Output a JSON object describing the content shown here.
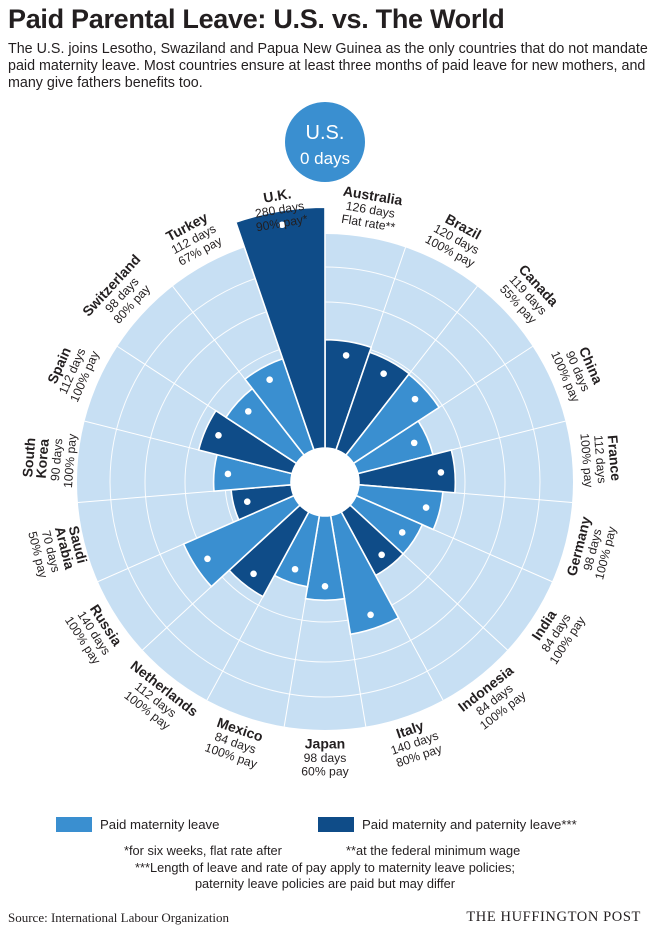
{
  "header": {
    "title": "Paid Parental Leave: U.S. vs. The World",
    "subtitle": "The U.S. joins Lesotho, Swaziland and Papua New Guinea as the only countries that do not mandate paid maternity leave. Most countries ensure at least three months of paid leave for new mothers, and many give fathers benefits too."
  },
  "chart_data": {
    "type": "polar-bar",
    "center_badge": {
      "country": "U.S.",
      "days_label": "0 days"
    },
    "series": [
      {
        "name": "Paid maternity leave",
        "color": "#3a8fd0"
      },
      {
        "name": "Paid maternity and paternity leave***",
        "color": "#0f4c88"
      }
    ],
    "countries": [
      {
        "name": "Australia",
        "days": 126,
        "days_label": "126 days",
        "pay_label": "Flat rate**",
        "type": "both"
      },
      {
        "name": "Brazil",
        "days": 120,
        "days_label": "120 days",
        "pay_label": "100% pay",
        "type": "both"
      },
      {
        "name": "Canada",
        "days": 119,
        "days_label": "119 days",
        "pay_label": "55% pay",
        "type": "maternity"
      },
      {
        "name": "China",
        "days": 90,
        "days_label": "90 days",
        "pay_label": "100% pay",
        "type": "maternity"
      },
      {
        "name": "France",
        "days": 112,
        "days_label": "112 days",
        "pay_label": "100% pay",
        "type": "both"
      },
      {
        "name": "Germany",
        "days": 98,
        "days_label": "98 days",
        "pay_label": "100% pay",
        "type": "maternity"
      },
      {
        "name": "India",
        "days": 84,
        "days_label": "84 days",
        "pay_label": "100% pay",
        "type": "maternity"
      },
      {
        "name": "Indonesia",
        "days": 84,
        "days_label": "84 days",
        "pay_label": "100% pay",
        "type": "both"
      },
      {
        "name": "Italy",
        "days": 140,
        "days_label": "140 days",
        "pay_label": "80% pay",
        "type": "maternity"
      },
      {
        "name": "Japan",
        "days": 98,
        "days_label": "98 days",
        "pay_label": "60% pay",
        "type": "maternity"
      },
      {
        "name": "Mexico",
        "days": 84,
        "days_label": "84 days",
        "pay_label": "100% pay",
        "type": "maternity"
      },
      {
        "name": "Netherlands",
        "days": 112,
        "days_label": "112 days",
        "pay_label": "100% pay",
        "type": "both"
      },
      {
        "name": "Russia",
        "days": 140,
        "days_label": "140 days",
        "pay_label": "100% pay",
        "type": "maternity"
      },
      {
        "name": "Saudi Arabia",
        "label_lines": [
          "Saudi",
          "Arabia"
        ],
        "days": 70,
        "days_label": "70 days",
        "pay_label": "50% pay",
        "type": "both"
      },
      {
        "name": "South Korea",
        "label_lines": [
          "South",
          "Korea"
        ],
        "days": 90,
        "days_label": "90 days",
        "pay_label": "100% pay",
        "type": "maternity"
      },
      {
        "name": "Spain",
        "days": 112,
        "days_label": "112 days",
        "pay_label": "100% pay",
        "type": "both"
      },
      {
        "name": "Switzerland",
        "days": 98,
        "days_label": "98 days",
        "pay_label": "80% pay",
        "type": "maternity"
      },
      {
        "name": "Turkey",
        "days": 112,
        "days_label": "112 days",
        "pay_label": "67% pay",
        "type": "maternity"
      },
      {
        "name": "U.K.",
        "days": 280,
        "days_label": "280 days",
        "pay_label": "90% pay*",
        "type": "both"
      }
    ],
    "colors": {
      "background_disc": "#c7dff3",
      "ring_lines": "#ffffff",
      "center_badge": "#3a8fd0"
    }
  },
  "legend": {
    "maternity_label": "Paid maternity leave",
    "both_label": "Paid maternity and paternity leave***"
  },
  "footnotes": {
    "note1": "*for six weeks, flat rate after",
    "note2": "**at the federal minimum wage",
    "note3_line1": "***Length of leave and rate of pay apply to maternity leave policies;",
    "note3_line2": "paternity leave policies are paid but may differ"
  },
  "footer": {
    "source": "Source: International Labour Organization",
    "brand": "THE HUFFINGTON POST"
  }
}
